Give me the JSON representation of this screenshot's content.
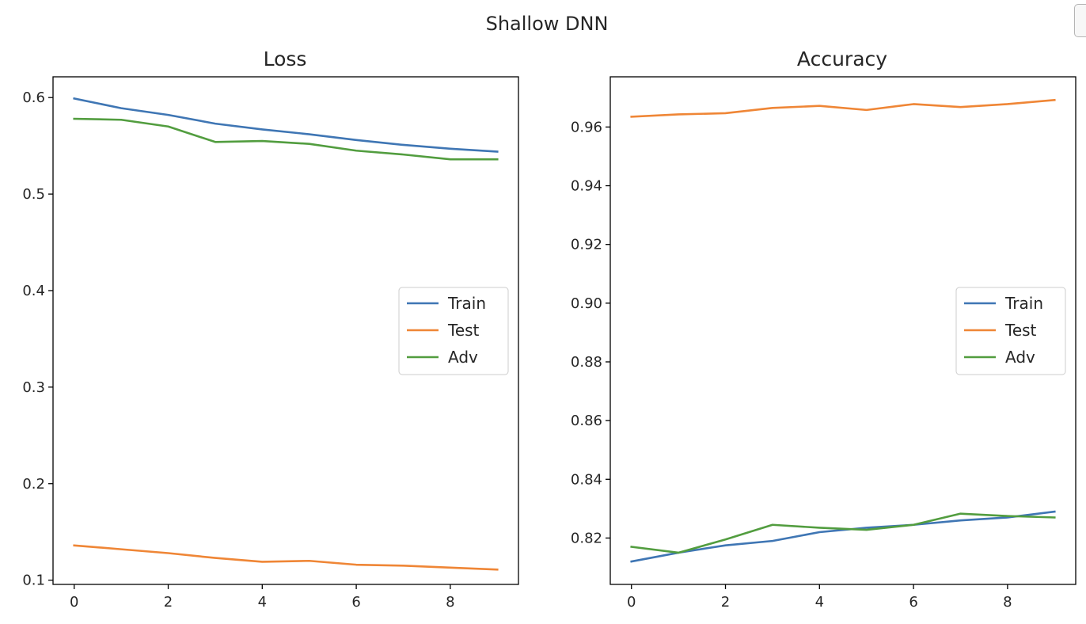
{
  "figure": {
    "suptitle": "Shallow DNN"
  },
  "chart_data": [
    {
      "type": "line",
      "title": "Loss",
      "xlabel": "",
      "ylabel": "",
      "xlim": [
        -0.45,
        9.45
      ],
      "ylim": [
        0.0956,
        0.6215
      ],
      "xticks": [
        0,
        2,
        4,
        6,
        8
      ],
      "yticks": [
        0.1,
        0.2,
        0.3,
        0.4,
        0.5,
        0.6
      ],
      "ytick_decimals": 1,
      "grid": false,
      "legend_position": "center-right",
      "x": [
        0,
        1,
        2,
        3,
        4,
        5,
        6,
        7,
        8,
        9
      ],
      "series": [
        {
          "name": "Train",
          "color": "#3f76b4",
          "values": [
            0.599,
            0.589,
            0.582,
            0.573,
            0.567,
            0.562,
            0.556,
            0.551,
            0.547,
            0.544
          ]
        },
        {
          "name": "Test",
          "color": "#ef8636",
          "values": [
            0.136,
            0.132,
            0.128,
            0.123,
            0.119,
            0.12,
            0.116,
            0.115,
            0.113,
            0.111
          ]
        },
        {
          "name": "Adv",
          "color": "#529d3f",
          "values": [
            0.578,
            0.577,
            0.57,
            0.554,
            0.555,
            0.552,
            0.545,
            0.541,
            0.536,
            0.536
          ]
        }
      ]
    },
    {
      "type": "line",
      "title": "Accuracy",
      "xlabel": "",
      "ylabel": "",
      "xlim": [
        -0.45,
        9.45
      ],
      "ylim": [
        0.8042,
        0.9771
      ],
      "xticks": [
        0,
        2,
        4,
        6,
        8
      ],
      "yticks": [
        0.82,
        0.84,
        0.86,
        0.88,
        0.9,
        0.92,
        0.94,
        0.96
      ],
      "ytick_decimals": 2,
      "grid": false,
      "legend_position": "center-right",
      "x": [
        0,
        1,
        2,
        3,
        4,
        5,
        6,
        7,
        8,
        9
      ],
      "series": [
        {
          "name": "Train",
          "color": "#3f76b4",
          "values": [
            0.812,
            0.815,
            0.8175,
            0.819,
            0.822,
            0.8235,
            0.8245,
            0.826,
            0.827,
            0.829
          ]
        },
        {
          "name": "Test",
          "color": "#ef8636",
          "values": [
            0.9635,
            0.9643,
            0.9647,
            0.9665,
            0.9672,
            0.9658,
            0.9678,
            0.9668,
            0.9678,
            0.9692
          ]
        },
        {
          "name": "Adv",
          "color": "#529d3f",
          "values": [
            0.817,
            0.815,
            0.8195,
            0.8245,
            0.8235,
            0.8228,
            0.8245,
            0.8283,
            0.8275,
            0.827
          ]
        }
      ]
    }
  ]
}
